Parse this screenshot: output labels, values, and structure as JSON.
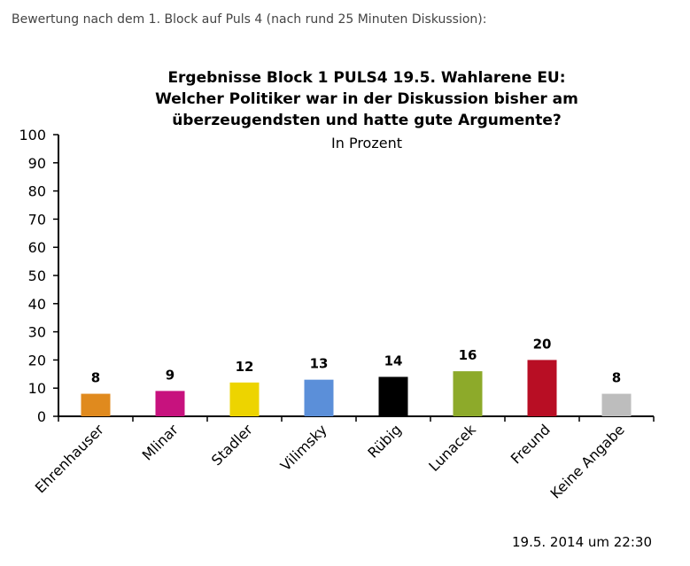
{
  "caption": "Bewertung nach dem 1. Block auf Puls 4 (nach rund 25 Minuten Diskussion):",
  "timestamp": "19.5. 2014 um 22:30",
  "chart_data": {
    "type": "bar",
    "title_lines": [
      "Ergebnisse  Block 1 PULS4  19.5. Wahlarene EU:",
      "Welcher Politiker war in der Diskussion bisher am",
      "überzeugendsten und hatte gute Argumente?"
    ],
    "subtitle": "In Prozent",
    "categories": [
      "Ehrenhauser",
      "Mlinar",
      "Stadler",
      "Vilimsky",
      "Rübig",
      "Lunacek",
      "Freund",
      "Keine Angabe"
    ],
    "values": [
      8,
      9,
      12,
      13,
      14,
      16,
      20,
      8
    ],
    "colors": [
      "#E08A1E",
      "#C7127E",
      "#EDD400",
      "#5B8FD9",
      "#000000",
      "#8DAA2A",
      "#B80E24",
      "#BDBDBD"
    ],
    "ylim": [
      0,
      100
    ],
    "yticks": [
      0,
      10,
      20,
      30,
      40,
      50,
      60,
      70,
      80,
      90,
      100
    ],
    "grid": false,
    "legend": "none"
  }
}
